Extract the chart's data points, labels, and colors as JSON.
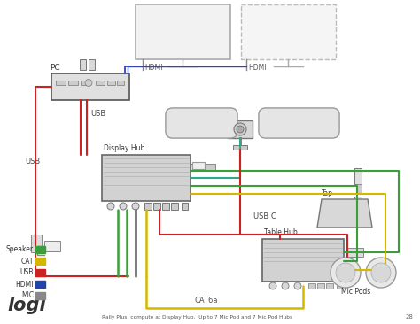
{
  "title": "Rally Plus: compute at Display Hub.  Up to 7 Mic Pod and 7 Mic Pod Hubs",
  "page_number": "28",
  "bg_color": "#ffffff",
  "legend": {
    "items": [
      "Speaker",
      "CAT",
      "USB",
      "HDMI",
      "MIC"
    ],
    "colors": [
      "#3a9e3a",
      "#d4b800",
      "#cc2222",
      "#2244aa",
      "#888888"
    ]
  },
  "logi_text": "logi",
  "wire_colors": {
    "red": "#cc2222",
    "yellow": "#d4b800",
    "green": "#3a9e3a",
    "teal": "#2aaa88",
    "blue": "#3344bb",
    "gray": "#888888"
  },
  "labels": {
    "PC": "PC",
    "USB_top": "USB",
    "USB_left": "USB",
    "HDMI1": "HDMI",
    "HDMI2": "HDMI",
    "USBC": "USB C",
    "CAT6a": "CAT6a",
    "display_hub": "Display Hub",
    "table_hub": "Table Hub",
    "tap": "Tap",
    "mic_pods": "Mic Pods"
  }
}
